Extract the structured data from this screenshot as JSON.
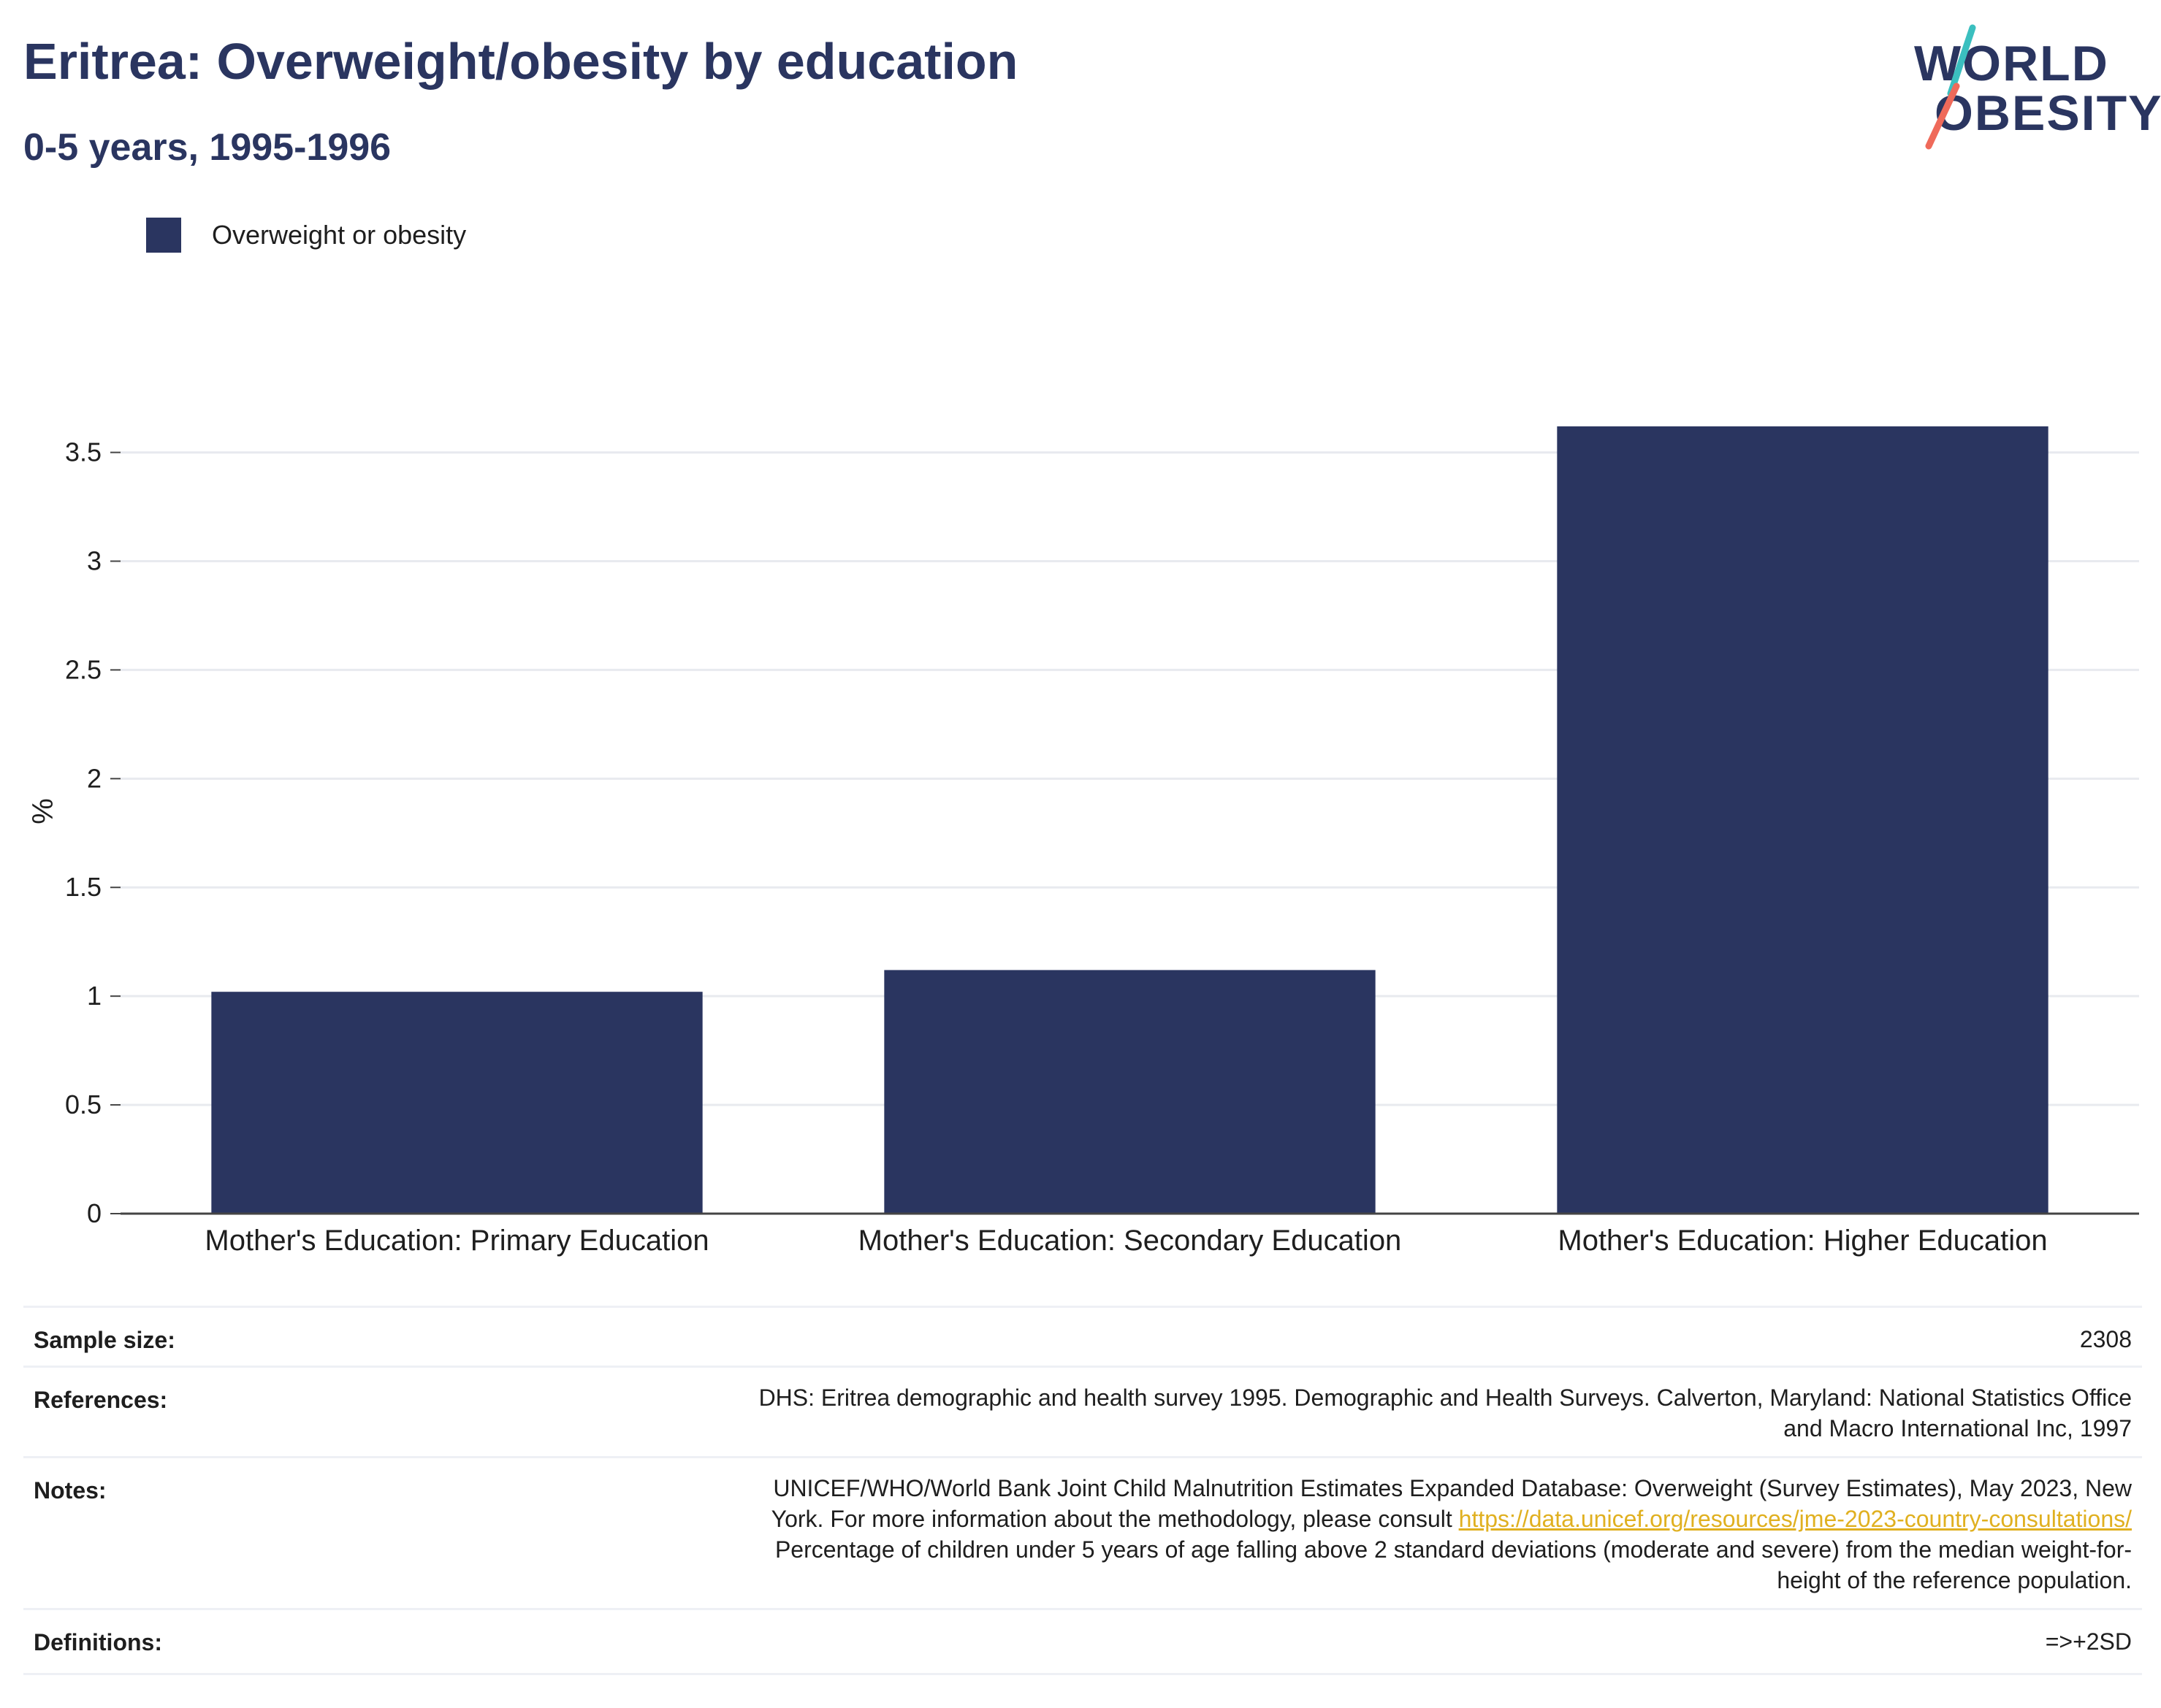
{
  "header": {
    "title": "Eritrea: Overweight/obesity by education",
    "subtitle": "0-5 years, 1995-1996"
  },
  "logo": {
    "line1": "WORLD",
    "line2": "OBESITY",
    "colors": {
      "teal": "#3bbfbf",
      "coral": "#ef6a5a",
      "navy": "#2a3560"
    }
  },
  "legend": {
    "label": "Overweight or obesity",
    "color": "#2a3560"
  },
  "chart_data": {
    "type": "bar",
    "categories": [
      "Mother's Education: Primary Education",
      "Mother's Education: Secondary Education",
      "Mother's Education: Higher Education"
    ],
    "series": [
      {
        "name": "Overweight or obesity",
        "values": [
          1.02,
          1.12,
          3.62
        ],
        "color": "#2a3560"
      }
    ],
    "ylabel": "%",
    "xlabel": "",
    "ylim": [
      0,
      3.7
    ],
    "yticks": [
      0,
      0.5,
      1,
      1.5,
      2,
      2.5,
      3,
      3.5
    ],
    "ytick_labels": [
      "0",
      "0.5",
      "1",
      "1.5",
      "2",
      "2.5",
      "3",
      "3.5"
    ],
    "grid": true,
    "legend_position": "top-left"
  },
  "info": {
    "sample_size_label": "Sample size:",
    "sample_size_value": "2308",
    "references_label": "References:",
    "references_line1": "DHS: Eritrea demographic and health survey 1995. Demographic and Health Surveys. Calverton, Maryland: National Statistics Office",
    "references_line2": "and Macro International Inc, 1997",
    "notes_label": "Notes:",
    "notes_line1": "UNICEF/WHO/World Bank Joint Child Malnutrition Estimates Expanded Database: Overweight (Survey Estimates), May 2023, New",
    "notes_line2_prefix": "York. For more information about the methodology, please consult",
    "notes_link": "https://data.unicef.org/resources/jme-2023-country-consultations/",
    "notes_line3": "Percentage of children under 5 years of age falling above 2 standard deviations (moderate and severe) from the median weight-for-",
    "notes_line4": "height of the reference population.",
    "definitions_label": "Definitions:",
    "definitions_value": "=>+2SD"
  }
}
